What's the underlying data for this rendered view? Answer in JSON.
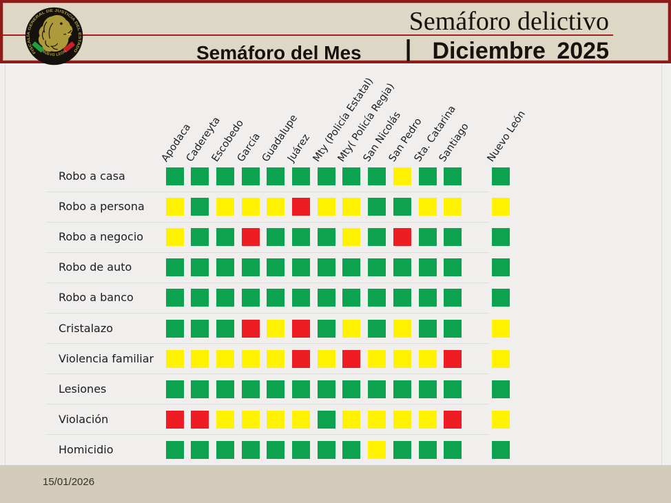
{
  "header": {
    "title": "Semáforo delictivo",
    "subtitle_left": "Semáforo del Mes",
    "subtitle_pipe": "|",
    "subtitle_right": "Diciembre 2025",
    "logo": {
      "ring_text": "FISCALÍA GENERAL DE JUSTICIA DEL ESTADO",
      "bottom_text": "NUEVO LEÓN"
    },
    "colors": {
      "background": "#ddd7c6",
      "border": "#8f1a1a",
      "divider": "#aa1d1d"
    }
  },
  "footer": {
    "date": "15/01/2026",
    "background": "#d3ccbb"
  },
  "chart_data": {
    "type": "heatmap",
    "title": "Semáforo del Mes | Diciembre 2025",
    "columns": [
      "Apodaca",
      "Cadereyta",
      "Escobedo",
      "García",
      "Guadalupe",
      "Juárez",
      "Mty (Policía Estatal)",
      "Mty( Policía Regia)",
      "San Nicolás",
      "San Pedro",
      "Sta. Catarina",
      "Santiago"
    ],
    "summary_column": "Nuevo León",
    "rows": [
      "Robo a casa",
      "Robo a persona",
      "Robo a negocio",
      "Robo de auto",
      "Robo a banco",
      "Cristalazo",
      "Violencia familiar",
      "Lesiones",
      "Violación",
      "Homicidio"
    ],
    "legend": {
      "G": "#0ca24f",
      "Y": "#fef200",
      "R": "#ee1c23"
    },
    "legend_meaning": {
      "G": "verde/bajo",
      "Y": "amarillo/medio",
      "R": "rojo/alto"
    },
    "cells": [
      [
        "G",
        "G",
        "G",
        "G",
        "G",
        "G",
        "G",
        "G",
        "G",
        "Y",
        "G",
        "G"
      ],
      [
        "Y",
        "G",
        "Y",
        "Y",
        "Y",
        "R",
        "Y",
        "Y",
        "G",
        "G",
        "Y",
        "Y"
      ],
      [
        "Y",
        "G",
        "G",
        "R",
        "G",
        "G",
        "G",
        "Y",
        "G",
        "R",
        "G",
        "G"
      ],
      [
        "G",
        "G",
        "G",
        "G",
        "G",
        "G",
        "G",
        "G",
        "G",
        "G",
        "G",
        "G"
      ],
      [
        "G",
        "G",
        "G",
        "G",
        "G",
        "G",
        "G",
        "G",
        "G",
        "G",
        "G",
        "G"
      ],
      [
        "G",
        "G",
        "G",
        "R",
        "Y",
        "R",
        "G",
        "Y",
        "G",
        "Y",
        "G",
        "G"
      ],
      [
        "Y",
        "Y",
        "Y",
        "Y",
        "Y",
        "R",
        "Y",
        "R",
        "Y",
        "Y",
        "Y",
        "R"
      ],
      [
        "G",
        "G",
        "G",
        "G",
        "G",
        "G",
        "G",
        "G",
        "G",
        "G",
        "G",
        "G"
      ],
      [
        "R",
        "R",
        "Y",
        "Y",
        "Y",
        "Y",
        "G",
        "Y",
        "Y",
        "Y",
        "Y",
        "R"
      ],
      [
        "G",
        "G",
        "G",
        "G",
        "G",
        "G",
        "G",
        "G",
        "Y",
        "G",
        "G",
        "G"
      ]
    ],
    "summary_values": [
      "G",
      "Y",
      "G",
      "G",
      "G",
      "Y",
      "Y",
      "G",
      "Y",
      "G"
    ]
  }
}
